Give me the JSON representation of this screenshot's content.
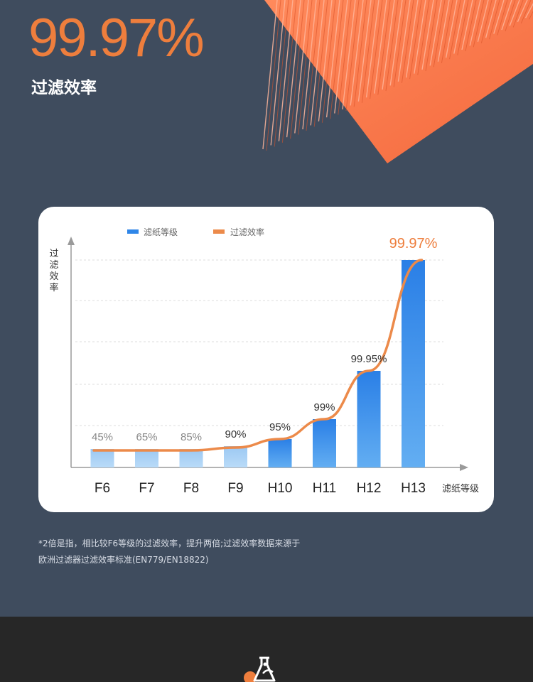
{
  "hero": {
    "value": "99.97%",
    "label": "过滤效率"
  },
  "chart_data": {
    "type": "bar",
    "categories": [
      "F6",
      "F7",
      "F8",
      "F9",
      "H10",
      "H11",
      "H12",
      "H13"
    ],
    "series": [
      {
        "name": "滤纸等级",
        "values": [
          45,
          65,
          85,
          90,
          95,
          99,
          99.95,
          99.97
        ]
      },
      {
        "name": "过滤效率",
        "values": [
          45,
          65,
          85,
          90,
          95,
          99,
          99.95,
          99.97
        ]
      }
    ],
    "value_labels": [
      "45%",
      "65%",
      "85%",
      "90%",
      "95%",
      "99%",
      "99.95%",
      "99.97%"
    ],
    "xlabel": "滤纸等级",
    "ylabel": "过滤效率",
    "legend_position": "top",
    "grid": true,
    "colors": {
      "bars": "#2f86e8",
      "bars_light": "#a9d0f5",
      "line": "#ec8a4a",
      "highlight_label": "#ee7e3d"
    }
  },
  "footnote": {
    "line1": "*2倍是指，相比较F6等级的过滤效率，提升两倍;过滤效率数据来源于",
    "line2": "欧洲过滤器过滤效率标准(EN779/EN18822)"
  },
  "icons": {
    "filter_visual": "pleated-filter-image",
    "bottom_icon": "lab-flask-icon"
  }
}
